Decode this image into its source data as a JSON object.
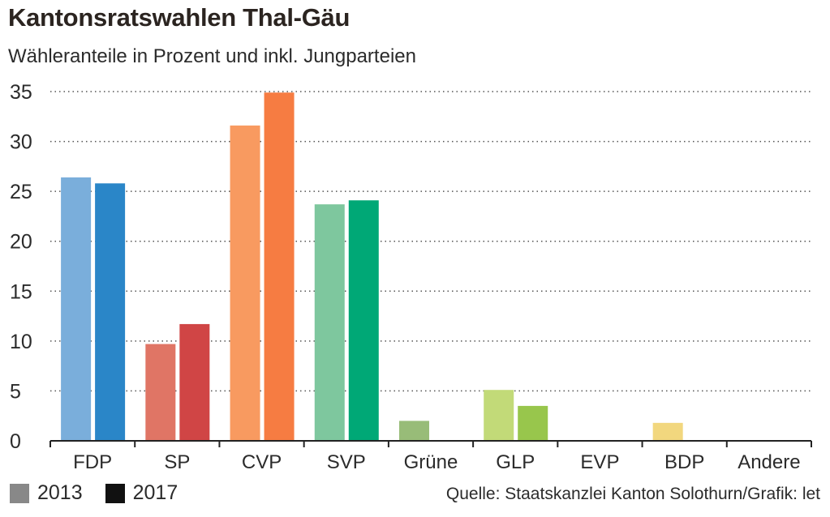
{
  "header": {
    "title": "Kantonsratswahlen Thal-Gäu",
    "subtitle": "Wähleranteile in Prozent und inkl. Jungparteien"
  },
  "legend": [
    {
      "label": "2013",
      "color": "#888888"
    },
    {
      "label": "2017",
      "color": "#111111"
    }
  ],
  "source": "Quelle: Staatskanzlei Kanton Solothurn/Grafik: let",
  "chart_data": {
    "type": "bar",
    "title": "Kantonsratswahlen Thal-Gäu",
    "subtitle": "Wähleranteile in Prozent und inkl. Jungparteien",
    "xlabel": "",
    "ylabel": "",
    "ylim": [
      0,
      35
    ],
    "yticks": [
      0,
      5,
      10,
      15,
      20,
      25,
      30,
      35
    ],
    "grid": true,
    "categories": [
      "FDP",
      "SP",
      "CVP",
      "SVP",
      "Grüne",
      "GLP",
      "EVP",
      "BDP",
      "Andere"
    ],
    "series": [
      {
        "name": "2013",
        "values": [
          26.4,
          9.7,
          31.6,
          23.7,
          2.0,
          5.1,
          0,
          1.8,
          0
        ]
      },
      {
        "name": "2017",
        "values": [
          25.8,
          11.7,
          34.9,
          24.1,
          0,
          3.5,
          0,
          0,
          0
        ]
      }
    ],
    "colors": [
      [
        "#7aaedb",
        "#2a86c8"
      ],
      [
        "#e07565",
        "#d04545"
      ],
      [
        "#f89a60",
        "#f67c42"
      ],
      [
        "#7ec79e",
        "#00a876"
      ],
      [
        "#98bc78",
        "#7aa85a"
      ],
      [
        "#c2da78",
        "#98c64c"
      ],
      [
        "#f0d080",
        "#e6c050"
      ],
      [
        "#f2d77e",
        "#e8c95a"
      ],
      [
        "#bbbbbb",
        "#888888"
      ]
    ]
  }
}
